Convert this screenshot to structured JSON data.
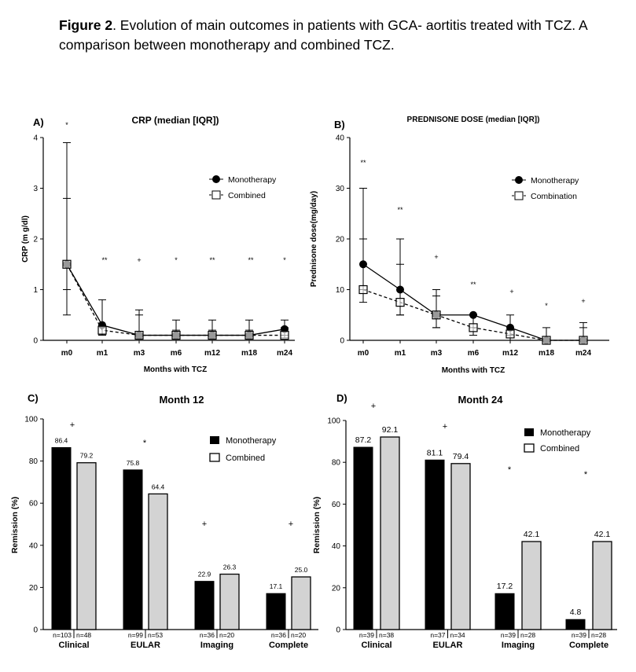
{
  "figure": {
    "label": "Figure 2",
    "caption": ". Evolution of main outcomes in patients with GCA- aortitis treated with TCZ. A comparison between monotherapy and combined TCZ."
  },
  "colors": {
    "mono": "#000000",
    "combined_fill": "#d3d3d3",
    "axis": "#000000"
  },
  "chart_data": [
    {
      "panel": "A)",
      "type": "line",
      "title": "CRP (median [IQR])",
      "xlabel": "Months with TCZ",
      "ylabel": "CRP (m g/dl)",
      "ylim": [
        0,
        4
      ],
      "yticks": [
        "0",
        "1",
        "2",
        "3",
        "4"
      ],
      "categories": [
        "m0",
        "m1",
        "m3",
        "m6",
        "m12",
        "m18",
        "m24"
      ],
      "significance": [
        "*",
        "**",
        "+",
        "*",
        "**",
        "**",
        "*"
      ],
      "series": [
        {
          "name": "Monotherapy",
          "values": [
            1.5,
            0.3,
            0.1,
            0.1,
            0.1,
            0.1,
            0.22
          ],
          "err_low": [
            0.5,
            0.12,
            0.03,
            0.03,
            0.03,
            0.03,
            0.1
          ],
          "err_high": [
            3.9,
            0.8,
            0.6,
            0.4,
            0.4,
            0.4,
            0.4
          ]
        },
        {
          "name": "Combined",
          "values": [
            1.5,
            0.2,
            0.1,
            0.1,
            0.1,
            0.1,
            0.1
          ],
          "err_low": [
            1.0,
            0.1,
            0.03,
            0.03,
            0.03,
            0.03,
            0.05
          ],
          "err_high": [
            2.8,
            0.3,
            0.5,
            0.2,
            0.2,
            0.2,
            0.25
          ]
        }
      ],
      "legend": [
        "Monotherapy",
        "Combined"
      ]
    },
    {
      "panel": "B)",
      "type": "line",
      "title": "PREDNISONE DOSE (median [IQR])",
      "xlabel": "Months with TCZ",
      "ylabel": "Prednisone dose(mg/day)",
      "ylim": [
        0,
        40
      ],
      "yticks": [
        "0",
        "10",
        "20",
        "30",
        "40"
      ],
      "categories": [
        "m0",
        "m1",
        "m3",
        "m6",
        "m12",
        "m18",
        "m24"
      ],
      "significance": [
        "**",
        "**",
        "+",
        "**",
        "+",
        "*",
        "+"
      ],
      "series": [
        {
          "name": "Monotherapy",
          "values": [
            15,
            10,
            5,
            5,
            2.5,
            0,
            0
          ],
          "err_low": [
            10,
            5,
            2.5,
            2.5,
            1,
            0,
            0
          ],
          "err_high": [
            30,
            20,
            10,
            5,
            5,
            2.5,
            3.5
          ]
        },
        {
          "name": "Combination",
          "values": [
            10,
            7.5,
            5,
            2.5,
            1.25,
            0,
            0
          ],
          "err_low": [
            7.5,
            5,
            2.5,
            1,
            0,
            0,
            0
          ],
          "err_high": [
            20,
            15,
            8.75,
            5,
            2.5,
            0,
            2.5
          ]
        }
      ],
      "legend": [
        "Monotherapy",
        "Combination"
      ]
    },
    {
      "panel": "C)",
      "type": "bar",
      "title": "Month 12",
      "xlabel": "",
      "ylabel": "Remission (%)",
      "ylim": [
        0,
        100
      ],
      "yticks": [
        "0",
        "20",
        "40",
        "60",
        "80",
        "100"
      ],
      "categories": [
        "Clinical",
        "EULAR",
        "Imaging",
        "Complete"
      ],
      "significance": [
        "+",
        "*",
        "+",
        "+"
      ],
      "series": [
        {
          "name": "Monotherapy",
          "values": [
            86.4,
            75.8,
            22.9,
            17.1
          ],
          "labels": [
            "86.4",
            "75.8",
            "22.9",
            "17.1"
          ],
          "n": [
            "n=103",
            "n=99",
            "n=36",
            "n=36"
          ]
        },
        {
          "name": "Combined",
          "values": [
            79.2,
            64.4,
            26.3,
            25.0
          ],
          "labels": [
            "79.2",
            "64.4",
            "26.3",
            "25.0"
          ],
          "n": [
            "n=48",
            "n=53",
            "n=20",
            "n=20"
          ]
        }
      ],
      "legend": [
        "Monotherapy",
        "Combined"
      ]
    },
    {
      "panel": "D)",
      "type": "bar",
      "title": "Month 24",
      "xlabel": "",
      "ylabel": "Remission (%)",
      "ylim": [
        0,
        100
      ],
      "yticks": [
        "0",
        "20",
        "40",
        "60",
        "80",
        "100"
      ],
      "categories": [
        "Clinical",
        "EULAR",
        "Imaging",
        "Complete"
      ],
      "significance": [
        "+",
        "+",
        "*",
        "*"
      ],
      "series": [
        {
          "name": "Monotherapy",
          "values": [
            87.2,
            81.1,
            17.2,
            4.8
          ],
          "labels": [
            "87.2",
            "81.1",
            "17.2",
            "4.8"
          ],
          "n": [
            "n=39",
            "n=37",
            "n=39",
            "n=39"
          ]
        },
        {
          "name": "Combined",
          "values": [
            92.1,
            79.4,
            42.1,
            42.1
          ],
          "labels": [
            "92.1",
            "79.4",
            "42.1",
            "42.1"
          ],
          "n": [
            "n=38",
            "n=34",
            "n=28",
            "n=28"
          ]
        }
      ],
      "legend": [
        "Monotherapy",
        "Combined"
      ]
    }
  ]
}
